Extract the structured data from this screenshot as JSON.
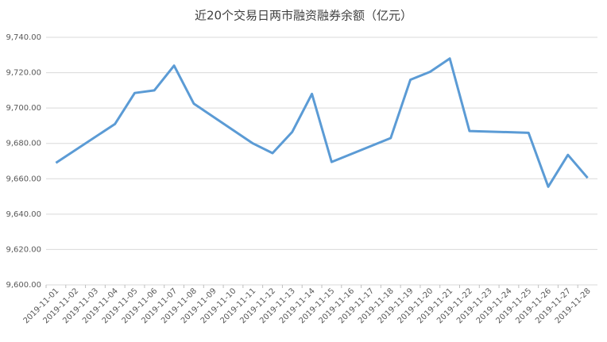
{
  "chart_data": {
    "type": "line",
    "title": "近20个交易日两市融资融券余额（亿元）",
    "xticks": [
      "2019-11-01",
      "2019-11-02",
      "2019-11-03",
      "2019-11-04",
      "2019-11-05",
      "2019-11-06",
      "2019-11-07",
      "2019-11-08",
      "2019-11-09",
      "2019-11-10",
      "2019-11-11",
      "2019-11-12",
      "2019-11-13",
      "2019-11-14",
      "2019-11-15",
      "2019-11-16",
      "2019-11-17",
      "2019-11-18",
      "2019-11-19",
      "2019-11-20",
      "2019-11-21",
      "2019-11-22",
      "2019-11-23",
      "2019-11-24",
      "2019-11-25",
      "2019-11-26",
      "2019-11-27",
      "2019-11-28"
    ],
    "x": [
      "2019-11-01",
      "2019-11-04",
      "2019-11-05",
      "2019-11-06",
      "2019-11-07",
      "2019-11-08",
      "2019-11-11",
      "2019-11-12",
      "2019-11-13",
      "2019-11-14",
      "2019-11-15",
      "2019-11-18",
      "2019-11-19",
      "2019-11-20",
      "2019-11-21",
      "2019-11-22",
      "2019-11-25",
      "2019-11-26",
      "2019-11-27",
      "2019-11-28"
    ],
    "values": [
      9669,
      9691,
      9708.5,
      9710,
      9724,
      9702.5,
      9680,
      9674.5,
      9686.5,
      9708,
      9669.5,
      9683,
      9716,
      9720.5,
      9728,
      9687,
      9686,
      9655.5,
      9673.5,
      9660.5
    ],
    "color": "#5b9bd5",
    "ylim": [
      9600,
      9740
    ],
    "yticks": [
      {
        "value": 9600,
        "label": "9,600.00"
      },
      {
        "value": 9620,
        "label": "9,620.00"
      },
      {
        "value": 9640,
        "label": "9,640.00"
      },
      {
        "value": 9660,
        "label": "9,660.00"
      },
      {
        "value": 9680,
        "label": "9,680.00"
      },
      {
        "value": 9700,
        "label": "9,700.00"
      },
      {
        "value": 9720,
        "label": "9,720.00"
      },
      {
        "value": 9740,
        "label": "9,740.00"
      }
    ],
    "grid": true
  }
}
